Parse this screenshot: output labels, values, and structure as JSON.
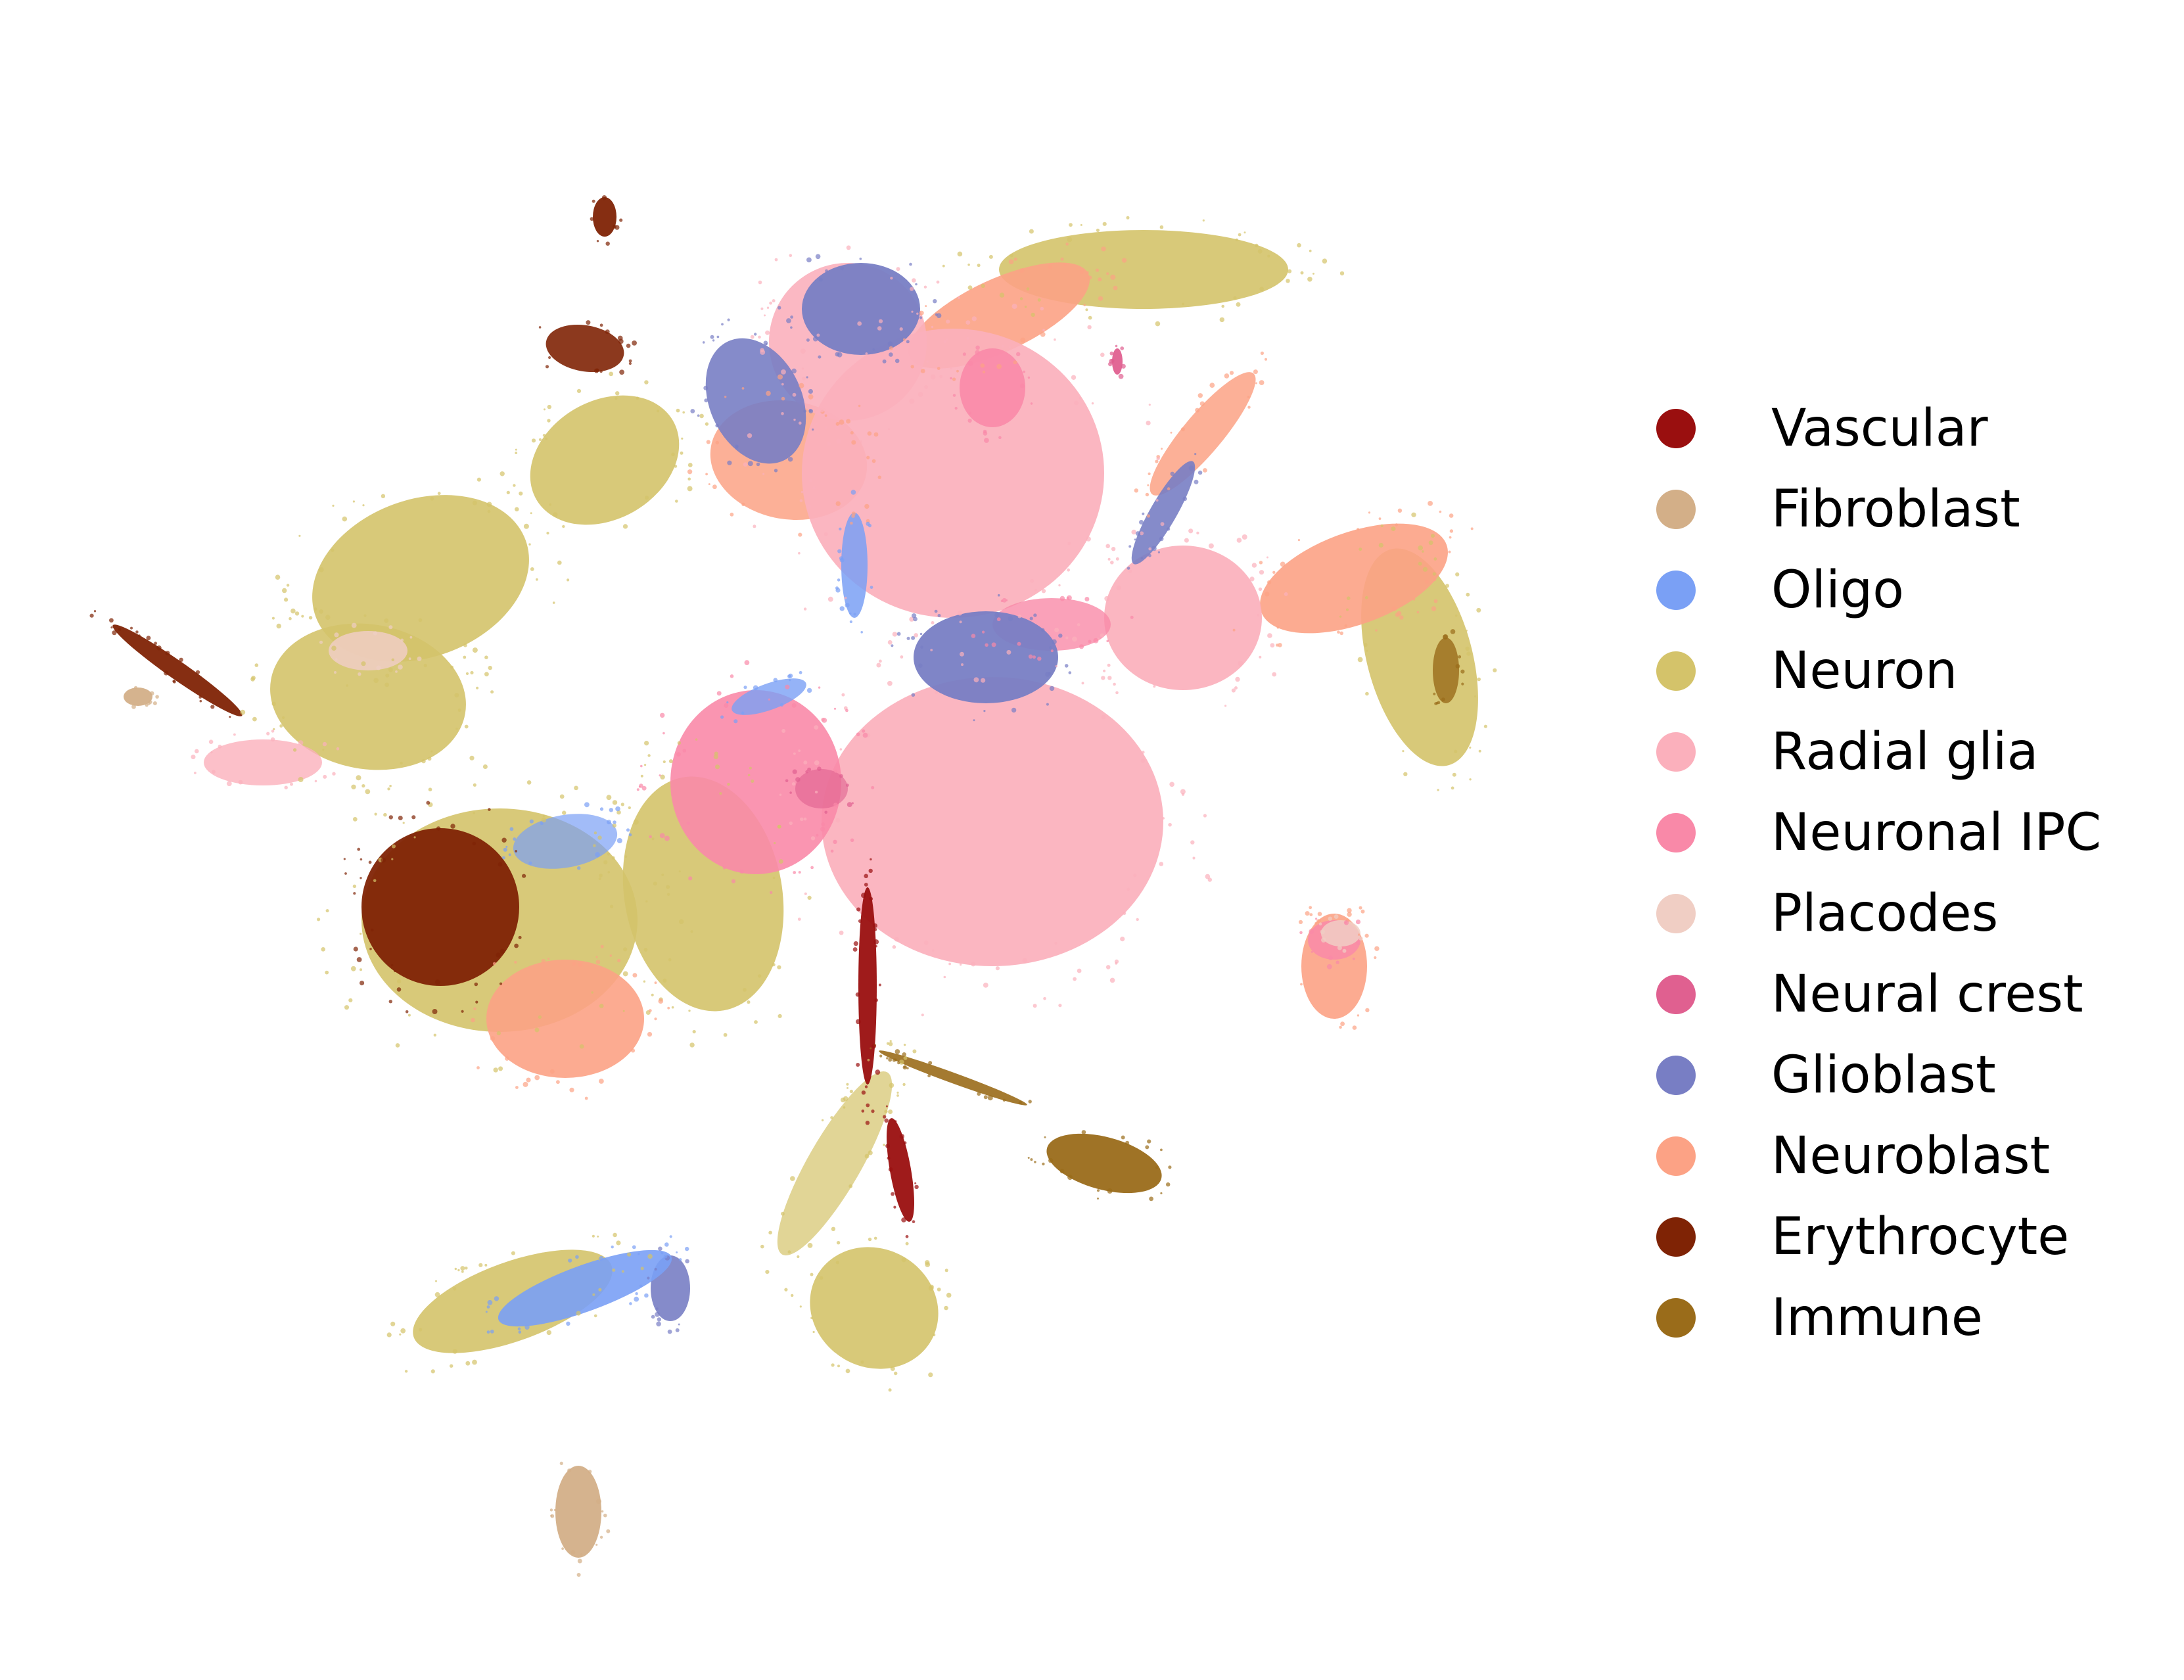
{
  "chart_data": {
    "type": "scatter",
    "title": "",
    "xlabel": "",
    "ylabel": "",
    "grid": false,
    "axes_visible": false,
    "legend_placement": "right",
    "series": [
      {
        "name": "Vascular",
        "color": "#9A0F0F"
      },
      {
        "name": "Fibroblast",
        "color": "#D3AF88"
      },
      {
        "name": "Oligo",
        "color": "#7AA0F5"
      },
      {
        "name": "Neuron",
        "color": "#D4C36A"
      },
      {
        "name": "Radial glia",
        "color": "#FBB0BC"
      },
      {
        "name": "Neuronal IPC",
        "color": "#F989A8"
      },
      {
        "name": "Placodes",
        "color": "#F0CEC4"
      },
      {
        "name": "Neural crest",
        "color": "#E06090"
      },
      {
        "name": "Glioblast",
        "color": "#787EC4"
      },
      {
        "name": "Neuroblast",
        "color": "#FCA285"
      },
      {
        "name": "Erythrocyte",
        "color": "#7F2305"
      },
      {
        "name": "Immune",
        "color": "#9A6C1A"
      }
    ]
  }
}
